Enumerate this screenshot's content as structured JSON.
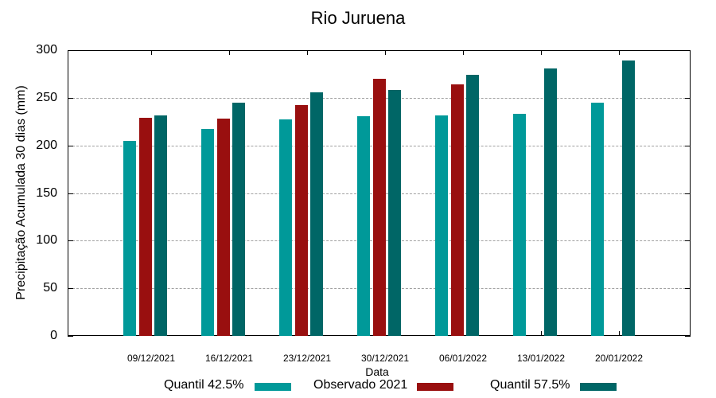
{
  "chart_data": {
    "type": "bar",
    "title": "Rio Juruena",
    "xlabel": "Data",
    "ylabel": "Precipitação Acumulada 30 dias (mm)",
    "ylim": [
      0,
      300
    ],
    "yticks": [
      0,
      50,
      100,
      150,
      200,
      250,
      300
    ],
    "grid": true,
    "legend_position": "bottom",
    "categories": [
      "09/12/2021",
      "16/12/2021",
      "23/12/2021",
      "30/12/2021",
      "06/01/2022",
      "13/01/2022",
      "20/01/2022"
    ],
    "series": [
      {
        "name": "Quantil 42.5%",
        "color": "#009999",
        "values": [
          205,
          217,
          227,
          231,
          231.5,
          233,
          245
        ]
      },
      {
        "name": "Observado 2021",
        "color": "#990F0F",
        "values": [
          229,
          228,
          242,
          270,
          264,
          null,
          null
        ]
      },
      {
        "name": "Quantil 57.5%",
        "color": "#006666",
        "values": [
          231.5,
          245,
          256,
          258,
          274,
          281,
          289
        ]
      }
    ]
  },
  "legend": [
    {
      "label": "Quantil 42.5%",
      "color": "#009999"
    },
    {
      "label": "Observado 2021",
      "color": "#990F0F"
    },
    {
      "label": "Quantil 57.5%",
      "color": "#006666"
    }
  ]
}
